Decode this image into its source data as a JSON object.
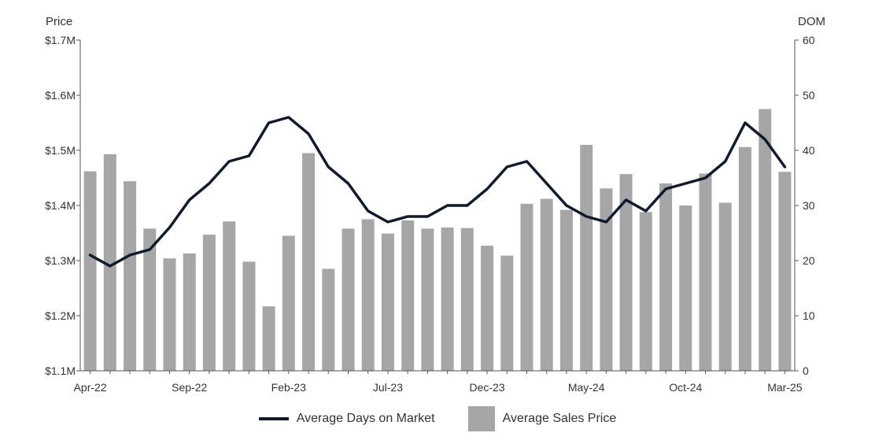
{
  "chart_data": {
    "type": "bar",
    "title": "",
    "y_left_label": "Price",
    "y_right_label": "DOM",
    "y_left_ticks": [
      "$1.1M",
      "$1.2M",
      "$1.3M",
      "$1.4M",
      "$1.5M",
      "$1.6M",
      "$1.7M"
    ],
    "y_left_range": [
      1100000,
      1700000
    ],
    "y_right_ticks": [
      "0",
      "10",
      "20",
      "30",
      "40",
      "50",
      "60"
    ],
    "y_right_range": [
      0,
      60
    ],
    "x_tick_labels": [
      {
        "index": 0,
        "label": "Apr-22"
      },
      {
        "index": 5,
        "label": "Sep-22"
      },
      {
        "index": 10,
        "label": "Feb-23"
      },
      {
        "index": 15,
        "label": "Jul-23"
      },
      {
        "index": 20,
        "label": "Dec-23"
      },
      {
        "index": 25,
        "label": "May-24"
      },
      {
        "index": 30,
        "label": "Oct-24"
      },
      {
        "index": 35,
        "label": "Mar-25"
      }
    ],
    "categories": [
      "Apr-22",
      "May-22",
      "Jun-22",
      "Jul-22",
      "Aug-22",
      "Sep-22",
      "Oct-22",
      "Nov-22",
      "Dec-22",
      "Jan-23",
      "Feb-23",
      "Mar-23",
      "Apr-23",
      "May-23",
      "Jun-23",
      "Jul-23",
      "Aug-23",
      "Sep-23",
      "Oct-23",
      "Nov-23",
      "Dec-23",
      "Jan-24",
      "Feb-24",
      "Mar-24",
      "Apr-24",
      "May-24",
      "Jun-24",
      "Jul-24",
      "Aug-24",
      "Sep-24",
      "Oct-24",
      "Nov-24",
      "Dec-24",
      "Jan-25",
      "Feb-25",
      "Mar-25"
    ],
    "grid": false,
    "legend_position": "bottom",
    "series": [
      {
        "name": "Average Sales Price",
        "type": "bar",
        "axis": "left",
        "color": "#a6a6a8",
        "values": [
          1462000,
          1493000,
          1444000,
          1358000,
          1304000,
          1313000,
          1347000,
          1371000,
          1298000,
          1217000,
          1345000,
          1495000,
          1285000,
          1358000,
          1375000,
          1349000,
          1373000,
          1358000,
          1360000,
          1359000,
          1327000,
          1309000,
          1403000,
          1412000,
          1392000,
          1510000,
          1431000,
          1457000,
          1388000,
          1440000,
          1400000,
          1458000,
          1405000,
          1506000,
          1575000,
          1461000
        ]
      },
      {
        "name": "Average Days on Market",
        "type": "line",
        "axis": "right",
        "color": "#0f1b2d",
        "values": [
          21,
          19,
          21,
          22,
          26,
          31,
          34,
          38,
          39,
          45,
          46,
          43,
          37,
          34,
          29,
          27,
          28,
          28,
          30,
          30,
          33,
          37,
          38,
          34,
          30,
          28,
          27,
          31,
          29,
          33,
          34,
          35,
          38,
          45,
          42,
          37
        ]
      }
    ]
  }
}
